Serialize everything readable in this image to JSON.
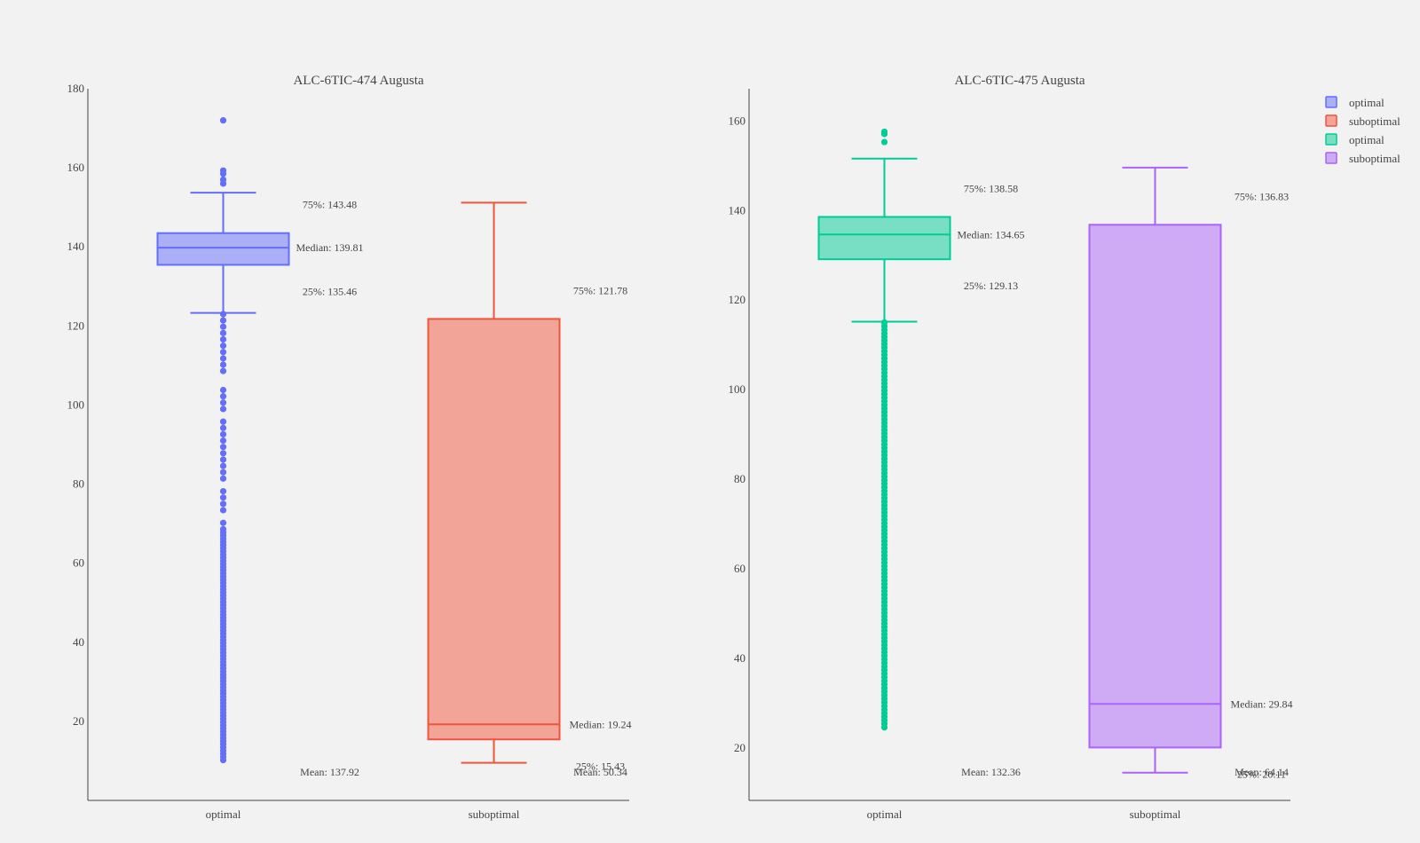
{
  "chart_data": [
    {
      "type": "box",
      "title": "ALC-6TIC-474 Augusta",
      "xlabel": "",
      "ylabel": "",
      "categories": [
        "optimal",
        "suboptimal"
      ],
      "ylim": [
        0,
        180
      ],
      "yticks": [
        20,
        40,
        60,
        80,
        100,
        120,
        140,
        160,
        180
      ],
      "grid": false,
      "series": [
        {
          "name": "optimal",
          "color": "#636efa",
          "q1": 135.46,
          "median": 139.81,
          "q3": 143.48,
          "lowerfence": 123.3,
          "upperfence": 153.7,
          "mean": 137.92,
          "annotations": {
            "q3": "75%: 143.48",
            "median": "Median: 139.81",
            "q1": "25%: 135.46",
            "mean": "Mean: 137.92"
          },
          "outliers_high": [
            156,
            157,
            158.5,
            159.3,
            172
          ],
          "outlier_low_range": [
            10,
            123
          ]
        },
        {
          "name": "suboptimal",
          "color": "#ef553b",
          "q1": 15.43,
          "median": 19.24,
          "q3": 121.78,
          "lowerfence": 9.5,
          "upperfence": 151.2,
          "mean": 50.34,
          "annotations": {
            "q3": "75%: 121.78",
            "median": "Median: 19.24",
            "q1": "25%: 15.43",
            "mean": "Mean: 50.34"
          },
          "outliers_high": [],
          "outlier_low_range": null
        }
      ]
    },
    {
      "type": "box",
      "title": "ALC-6TIC-475 Augusta",
      "xlabel": "",
      "ylabel": "",
      "categories": [
        "optimal",
        "suboptimal"
      ],
      "ylim": [
        6,
        165
      ],
      "yticks": [
        20,
        40,
        60,
        80,
        100,
        120,
        140,
        160
      ],
      "grid": false,
      "series": [
        {
          "name": "optimal",
          "color": "#00cc96",
          "q1": 129.13,
          "median": 134.65,
          "q3": 138.58,
          "lowerfence": 115.2,
          "upperfence": 151.6,
          "mean": 132.36,
          "annotations": {
            "q3": "75%: 138.58",
            "median": "Median: 134.65",
            "q1": "25%: 129.13",
            "mean": "Mean: 132.36"
          },
          "outliers_high": [
            155.3,
            157.1,
            157.6
          ],
          "outlier_low_range": [
            24,
            115
          ]
        },
        {
          "name": "suboptimal",
          "color": "#ab63fa",
          "q1": 20.11,
          "median": 29.84,
          "q3": 136.83,
          "lowerfence": 14.5,
          "upperfence": 149.6,
          "mean": 64.14,
          "annotations": {
            "q3": "75%: 136.83",
            "median": "Median: 29.84",
            "q1": "25%: 20.11",
            "mean": "Mean: 64.14"
          },
          "outliers_high": [],
          "outlier_low_range": null
        }
      ]
    }
  ],
  "legend": {
    "position": "top-right",
    "items": [
      {
        "label": "optimal",
        "color": "#636efa"
      },
      {
        "label": "suboptimal",
        "color": "#ef553b"
      },
      {
        "label": "optimal",
        "color": "#00cc96"
      },
      {
        "label": "suboptimal",
        "color": "#ab63fa"
      }
    ]
  }
}
